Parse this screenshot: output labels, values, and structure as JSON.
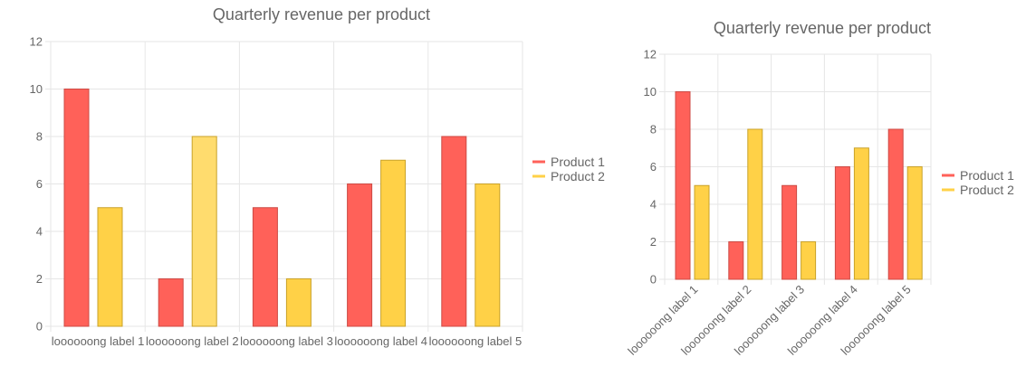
{
  "chart_data": [
    {
      "type": "bar",
      "title": "Quarterly revenue per product",
      "categories": [
        "loooooong label 1",
        "loooooong label 2",
        "loooooong label 3",
        "loooooong label 4",
        "loooooong label 5"
      ],
      "series": [
        {
          "name": "Product 1",
          "values": [
            10,
            2,
            5,
            6,
            8
          ],
          "color": "#ff6159",
          "stroke": "#cc4a44"
        },
        {
          "name": "Product 2",
          "values": [
            5,
            8,
            2,
            7,
            6
          ],
          "color": "#ffd147",
          "stroke": "#c9a22a"
        }
      ],
      "ylim": [
        0,
        12
      ],
      "yticks": [
        "0",
        "2",
        "4",
        "6",
        "8",
        "10",
        "12"
      ],
      "grid": true,
      "legend": "right",
      "xlabel": "",
      "ylabel": ""
    },
    {
      "type": "bar",
      "title": "Quarterly revenue per product",
      "categories": [
        "loooooong label 1",
        "loooooong label 2",
        "loooooong label 3",
        "loooooong label 4",
        "loooooong label 5"
      ],
      "series": [
        {
          "name": "Product 1",
          "values": [
            10,
            2,
            5,
            6,
            8
          ],
          "color": "#ff6159",
          "stroke": "#cc4a44"
        },
        {
          "name": "Product 2",
          "values": [
            5,
            8,
            2,
            7,
            6
          ],
          "color": "#ffd147",
          "stroke": "#c9a22a"
        }
      ],
      "ylim": [
        0,
        12
      ],
      "yticks": [
        "0",
        "2",
        "4",
        "6",
        "8",
        "10",
        "12"
      ],
      "grid": true,
      "legend": "right",
      "xlabel": "",
      "ylabel": ""
    }
  ]
}
